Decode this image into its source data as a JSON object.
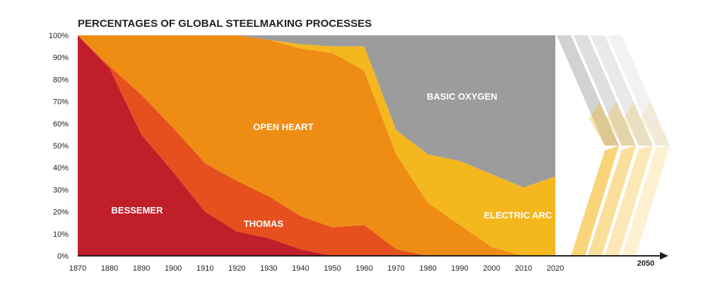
{
  "chart_data": {
    "type": "area",
    "stacked": true,
    "title": "PERCENTAGES OF GLOBAL STEELMAKING PROCESSES",
    "x_ticks": [
      "1870",
      "1880",
      "1890",
      "1900",
      "1910",
      "1920",
      "1930",
      "1940",
      "1950",
      "1960",
      "1970",
      "1980",
      "1990",
      "2000",
      "2010",
      "2020"
    ],
    "x_end_label": "2050",
    "y_ticks": [
      "0%",
      "10%",
      "20%",
      "30%",
      "40%",
      "50%",
      "60%",
      "70%",
      "80%",
      "90%",
      "100%"
    ],
    "ylim": [
      0,
      100
    ],
    "x": [
      1870,
      1880,
      1890,
      1900,
      1910,
      1920,
      1930,
      1940,
      1950,
      1960,
      1970,
      1980,
      1990,
      2000,
      2010,
      2020
    ],
    "series": [
      {
        "name": "BESSEMER",
        "color": "#c01f2a",
        "values": [
          100,
          85,
          55,
          38,
          20,
          11,
          8,
          3,
          0,
          0,
          0,
          0,
          0,
          0,
          0,
          0
        ]
      },
      {
        "name": "THOMAS",
        "color": "#e6501e",
        "values": [
          0,
          1,
          18,
          20,
          22,
          23,
          19,
          15,
          13,
          14,
          3,
          0,
          0,
          0,
          0,
          0
        ]
      },
      {
        "name": "OPEN HEART",
        "color": "#ef8c14",
        "values": [
          0,
          14,
          27,
          42,
          58,
          66,
          71,
          76,
          79,
          70,
          43,
          24,
          14,
          4,
          0,
          0
        ]
      },
      {
        "name": "ELECTRIC ARC",
        "color": "#f5b71e",
        "values": [
          0,
          0,
          0,
          0,
          0,
          0,
          0,
          2,
          3,
          11,
          11,
          22,
          29,
          33,
          31,
          36
        ]
      },
      {
        "name": "BASIC OXYGEN",
        "color": "#9c9c9c",
        "values": [
          0,
          0,
          0,
          0,
          0,
          0,
          2,
          4,
          5,
          5,
          43,
          54,
          57,
          63,
          69,
          64
        ]
      }
    ],
    "series_labels": [
      "BESSEMER",
      "THOMAS",
      "OPEN HEART",
      "ELECTRIC ARC",
      "BASIC OXYGEN"
    ],
    "future_fade": {
      "electric_arc_color": "#f5b71e",
      "basic_oxygen_color": "#9c9c9c"
    }
  }
}
